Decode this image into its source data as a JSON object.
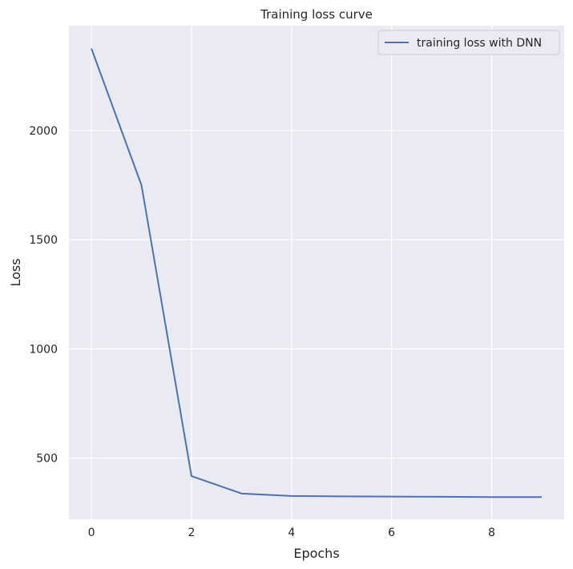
{
  "chart_data": {
    "type": "line",
    "title": "Training loss curve",
    "xlabel": "Epochs",
    "ylabel": "Loss",
    "x": [
      0,
      1,
      2,
      3,
      4,
      5,
      6,
      7,
      8,
      9
    ],
    "series": [
      {
        "name": "training loss with DNN",
        "values": [
          2375,
          1750,
          418,
          338,
          327,
          325,
          324,
          323,
          322,
          322
        ],
        "color": "#4c72b0"
      }
    ],
    "xlim": [
      -0.45,
      9.45
    ],
    "ylim": [
      220,
      2480
    ],
    "xticks": [
      0,
      2,
      4,
      6,
      8
    ],
    "yticks": [
      500,
      1000,
      1500,
      2000
    ],
    "grid": true,
    "legend": "top-right",
    "background": "#eaeaf2",
    "grid_color": "#ffffff"
  }
}
